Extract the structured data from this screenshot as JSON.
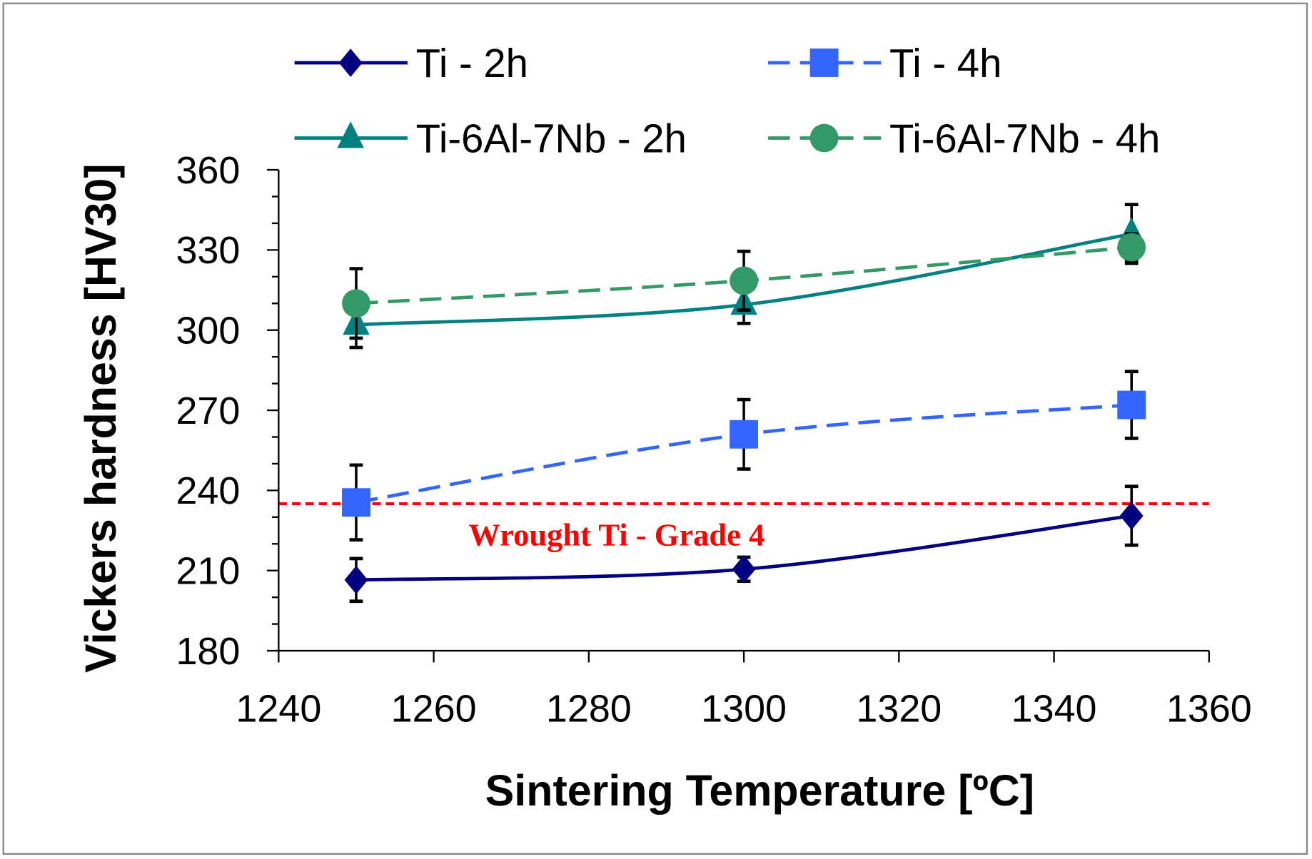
{
  "chart_data": {
    "type": "line",
    "xlabel": "Sintering Temperature [ºC]",
    "ylabel": "Vickers hardness [HV30]",
    "xlim": [
      1240,
      1360
    ],
    "ylim": [
      180,
      360
    ],
    "xticks": [
      1240,
      1260,
      1280,
      1300,
      1320,
      1340,
      1360
    ],
    "yticks": [
      180,
      210,
      240,
      270,
      300,
      330,
      360
    ],
    "grid": false,
    "legend_position": "top",
    "x": [
      1250,
      1300,
      1350
    ],
    "series": [
      {
        "name": "Ti - 2h",
        "values": [
          206.5,
          210.5,
          230.5
        ],
        "errors": [
          8,
          4.5,
          11
        ],
        "color": "#000080",
        "marker": "diamond",
        "dashed": false
      },
      {
        "name": "Ti - 4h",
        "values": [
          235.5,
          261,
          272
        ],
        "errors": [
          14,
          13,
          12.5
        ],
        "color": "#3366ff",
        "marker": "square",
        "dashed": true
      },
      {
        "name": "Ti-6Al-7Nb - 2h",
        "values": [
          302,
          309.5,
          336
        ],
        "errors": [
          8.5,
          7,
          11
        ],
        "color": "#008080",
        "marker": "triangle",
        "dashed": false
      },
      {
        "name": "Ti-6Al-7Nb - 4h",
        "values": [
          310,
          318.5,
          331
        ],
        "errors": [
          13,
          11,
          5
        ],
        "color": "#339966",
        "marker": "circle",
        "dashed": true
      }
    ],
    "reference_line": {
      "label": "Wrought Ti - Grade 4",
      "value": 235,
      "color": "#ff0000"
    }
  }
}
